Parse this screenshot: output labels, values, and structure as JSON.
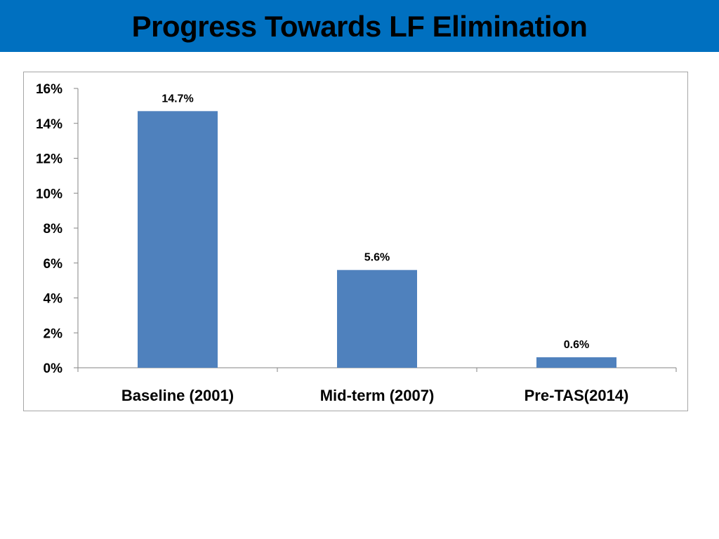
{
  "slide": {
    "title": "Progress Towards LF Elimination",
    "title_bar_color": "#0070c0"
  },
  "chart_data": {
    "type": "bar",
    "title": "",
    "xlabel": "",
    "ylabel": "",
    "categories": [
      "Baseline (2001)",
      "Mid-term (2007)",
      "Pre-TAS(2014)"
    ],
    "values": [
      14.7,
      5.6,
      0.6
    ],
    "data_labels": [
      "14.7%",
      "5.6%",
      "0.6%"
    ],
    "ylim": [
      0,
      16
    ],
    "yticks": [
      0,
      2,
      4,
      6,
      8,
      10,
      12,
      14,
      16
    ],
    "ytick_labels": [
      "0%",
      "2%",
      "4%",
      "6%",
      "8%",
      "10%",
      "12%",
      "14%",
      "16%"
    ],
    "grid": false,
    "legend": "none",
    "bar_color": "#4f81bd",
    "axis_color": "#868686"
  }
}
